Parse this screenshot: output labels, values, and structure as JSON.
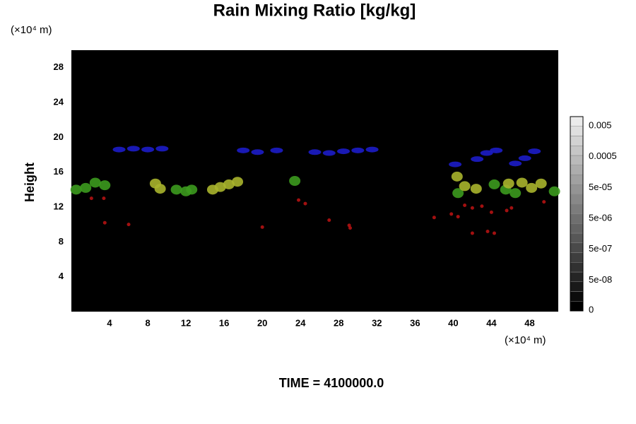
{
  "chart_data": {
    "type": "field",
    "title": "Rain Mixing Ratio [kg/kg]",
    "y_unit_label": "(×10⁴ m)",
    "x_unit_label": "(×10⁴ m)",
    "ylabel": "Height",
    "annotation": "TIME = 4100000.0",
    "xlim": [
      0,
      51
    ],
    "ylim": [
      0,
      30
    ],
    "xticks": [
      4,
      8,
      12,
      16,
      20,
      24,
      28,
      32,
      36,
      40,
      44,
      48
    ],
    "yticks": [
      4,
      8,
      12,
      16,
      20,
      24,
      28
    ],
    "background": "#000000",
    "series": [
      {
        "color": "#1c1cc8",
        "x": [
          5,
          6.5,
          8,
          9.5,
          18,
          19.5,
          21.5,
          25.5,
          27,
          28.5,
          30,
          31.5,
          40.2,
          42.5,
          43.5,
          44.5,
          46.5,
          47.5,
          48.5
        ],
        "y": [
          18.6,
          18.7,
          18.6,
          18.7,
          18.5,
          18.3,
          18.5,
          18.3,
          18.2,
          18.4,
          18.5,
          18.6,
          16.9,
          17.5,
          18.2,
          18.5,
          17,
          17.6,
          18.4
        ]
      },
      {
        "color": "#3c9a1e",
        "x": [
          0.5,
          1.5,
          2.5,
          3.5,
          11,
          12,
          12.6,
          23.4,
          40.5,
          44.3,
          45.5,
          46.5,
          50.6
        ],
        "y": [
          14,
          14.2,
          14.8,
          14.5,
          14,
          13.8,
          14,
          15,
          13.6,
          14.6,
          14,
          13.6,
          13.8
        ]
      },
      {
        "color": "#a8b42c",
        "x": [
          8.8,
          9.3,
          14.8,
          15.6,
          16.5,
          17.4,
          40.4,
          41.2,
          42.4,
          45.8,
          47.2,
          48.2,
          49.2
        ],
        "y": [
          14.7,
          14.1,
          14,
          14.3,
          14.6,
          14.9,
          15.5,
          14.4,
          14.1,
          14.7,
          14.8,
          14.2,
          14.7
        ]
      },
      {
        "color": "#b41212",
        "x": [
          2.1,
          3.4,
          3.5,
          6,
          20,
          23.8,
          24.5,
          27,
          29.1,
          29.2,
          38,
          39.8,
          40.5,
          41.2,
          42,
          43,
          44,
          42,
          43.6,
          44.3,
          45.6,
          46.1,
          49.5
        ],
        "y": [
          13,
          13,
          10.2,
          10,
          9.7,
          12.8,
          12.4,
          10.5,
          9.9,
          9.6,
          10.8,
          11.2,
          10.9,
          12.2,
          11.9,
          12.1,
          11.4,
          9,
          9.2,
          9,
          11.6,
          11.9,
          12.6
        ]
      }
    ],
    "colorbar": {
      "lim": [
        5e-09,
        0.01
      ],
      "log": true,
      "ticks": [
        0,
        {
          "value": 5e-08,
          "label": "5e-08"
        },
        {
          "value": 5e-07,
          "label": "5e-07"
        },
        {
          "value": 5e-06,
          "label": "5e-06"
        },
        {
          "value": 5e-05,
          "label": "5e-05"
        },
        0.0005,
        0.005
      ]
    }
  }
}
